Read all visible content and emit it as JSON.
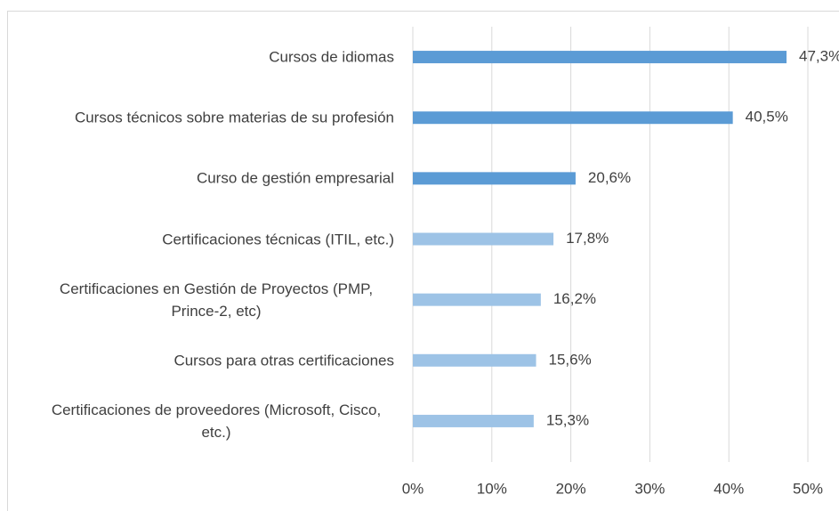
{
  "chart_data": {
    "type": "barh",
    "categories": [
      "Cursos de idiomas",
      "Cursos técnicos sobre materias de su profesión",
      "Curso de gestión empresarial",
      "Certificaciones técnicas (ITIL, etc.)",
      "Certificaciones en Gestión de Proyectos (PMP, Prince-2, etc)",
      "Cursos para otras certificaciones",
      "Certificaciones de proveedores (Microsoft, Cisco, etc.)"
    ],
    "values": [
      47.3,
      40.5,
      20.6,
      17.8,
      16.2,
      15.6,
      15.3
    ],
    "value_labels": [
      "47,3%",
      "40,5%",
      "20,6%",
      "17,8%",
      "16,2%",
      "15,6%",
      "15,3%"
    ],
    "colors": [
      "#5b9bd5",
      "#5b9bd5",
      "#5b9bd5",
      "#9dc3e6",
      "#9dc3e6",
      "#9dc3e6",
      "#9dc3e6"
    ],
    "xlim": [
      0,
      50
    ],
    "xticks": [
      {
        "value": 0,
        "label": "0%"
      },
      {
        "value": 10,
        "label": "10%"
      },
      {
        "value": 20,
        "label": "20%"
      },
      {
        "value": 30,
        "label": "30%"
      },
      {
        "value": 40,
        "label": "40%"
      },
      {
        "value": 50,
        "label": "50%"
      }
    ],
    "grid": true
  }
}
